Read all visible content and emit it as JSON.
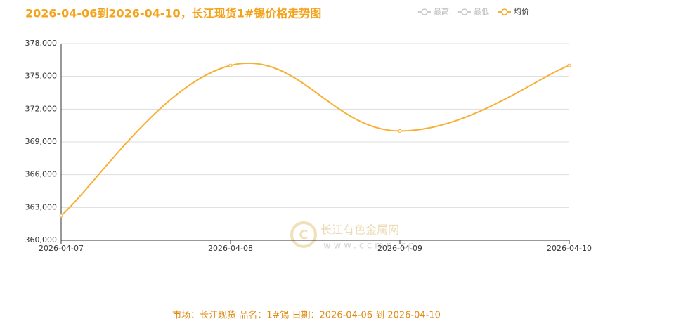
{
  "chart_data": {
    "type": "line",
    "title": "2026-04-06到2026-04-10，长江现货1#锡价格走势图",
    "legend": [
      {
        "name": "最高",
        "active": false
      },
      {
        "name": "最低",
        "active": false
      },
      {
        "name": "均价",
        "active": true
      }
    ],
    "categories": [
      "2026-04-07",
      "2026-04-08",
      "2026-04-09",
      "2026-04-10"
    ],
    "series": [
      {
        "name": "均价",
        "color": "#f7b032",
        "values": [
          362250,
          376000,
          370000,
          376000
        ]
      }
    ],
    "ylim": [
      360000,
      378000
    ],
    "yticks": [
      {
        "value": 360000,
        "label": "360,000"
      },
      {
        "value": 363000,
        "label": "363,000"
      },
      {
        "value": 366000,
        "label": "366,000"
      },
      {
        "value": 369000,
        "label": "369,000"
      },
      {
        "value": 372000,
        "label": "372,000"
      },
      {
        "value": 375000,
        "label": "375,000"
      },
      {
        "value": 378000,
        "label": "378,000"
      }
    ],
    "grid": true,
    "smooth": true,
    "watermark": {
      "name": "长江有色金属网",
      "url": "www.ccmn.cn"
    },
    "footer": "市场：长江现货   品名：1#锡   日期：2026-04-06 到 2026-04-10"
  }
}
